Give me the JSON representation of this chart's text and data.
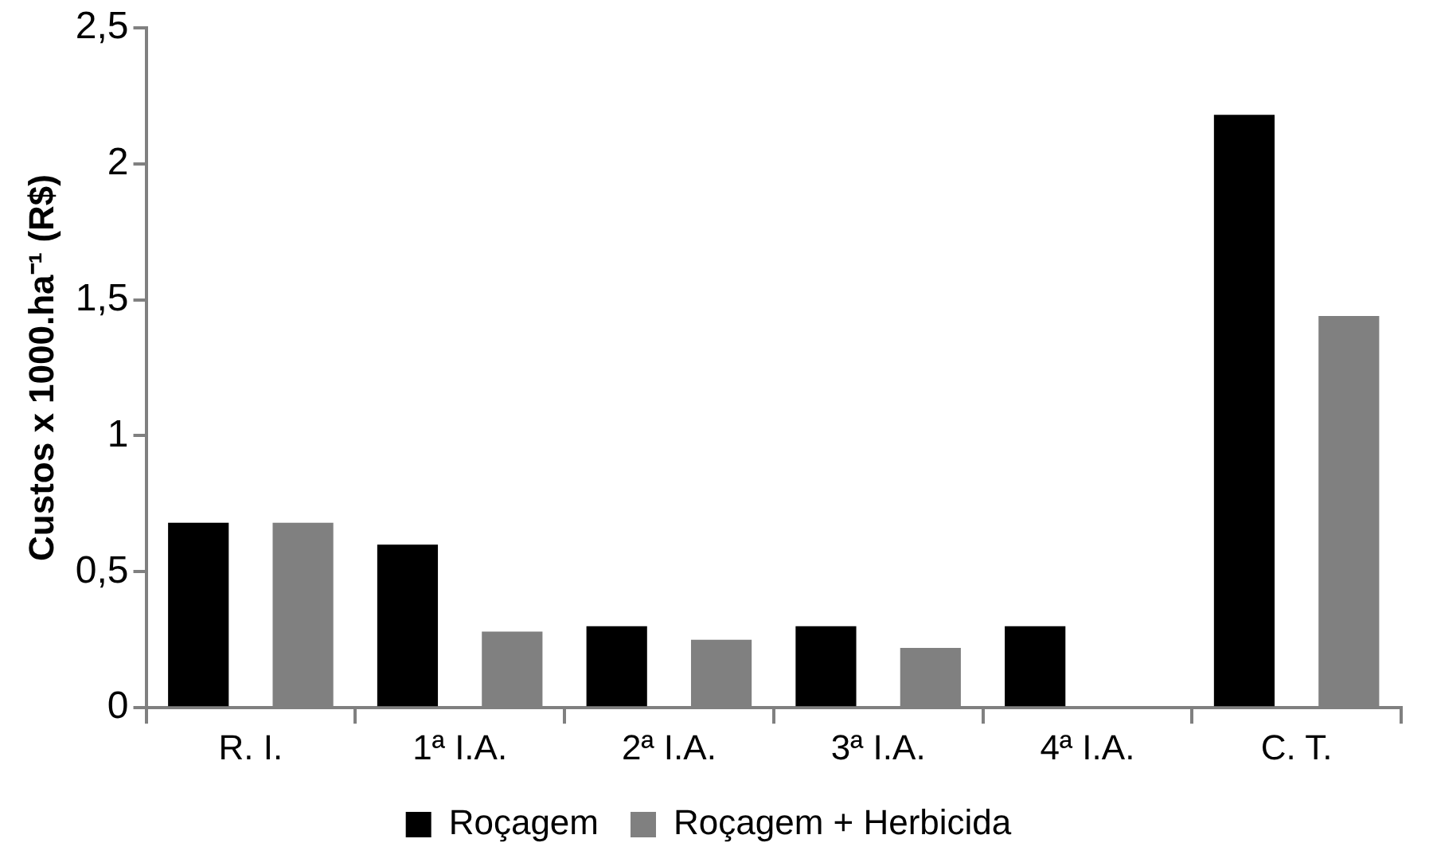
{
  "chart_data": {
    "type": "bar",
    "ylabel": "Custos x 1000.ha⁻¹ (R$)",
    "categories": [
      "R. I.",
      "1ª I.A.",
      "2ª I.A.",
      "3ª I.A.",
      "4ª I.A.",
      "C. T."
    ],
    "series": [
      {
        "name": "Roçagem",
        "color": "#000000",
        "values": [
          0.68,
          0.6,
          0.3,
          0.3,
          0.3,
          2.18
        ]
      },
      {
        "name": "Roçagem + Herbicida",
        "color": "#808080",
        "values": [
          0.68,
          0.28,
          0.25,
          0.22,
          0,
          1.44
        ]
      }
    ],
    "ylim": [
      0,
      2.5
    ],
    "yticks": [
      0,
      {
        "value": 0.5,
        "label": "0,5"
      },
      1,
      {
        "value": 1.5,
        "label": "1,5"
      },
      2,
      {
        "value": 2.5,
        "label": "2,5"
      }
    ],
    "grid": false,
    "legend": "bottom"
  }
}
